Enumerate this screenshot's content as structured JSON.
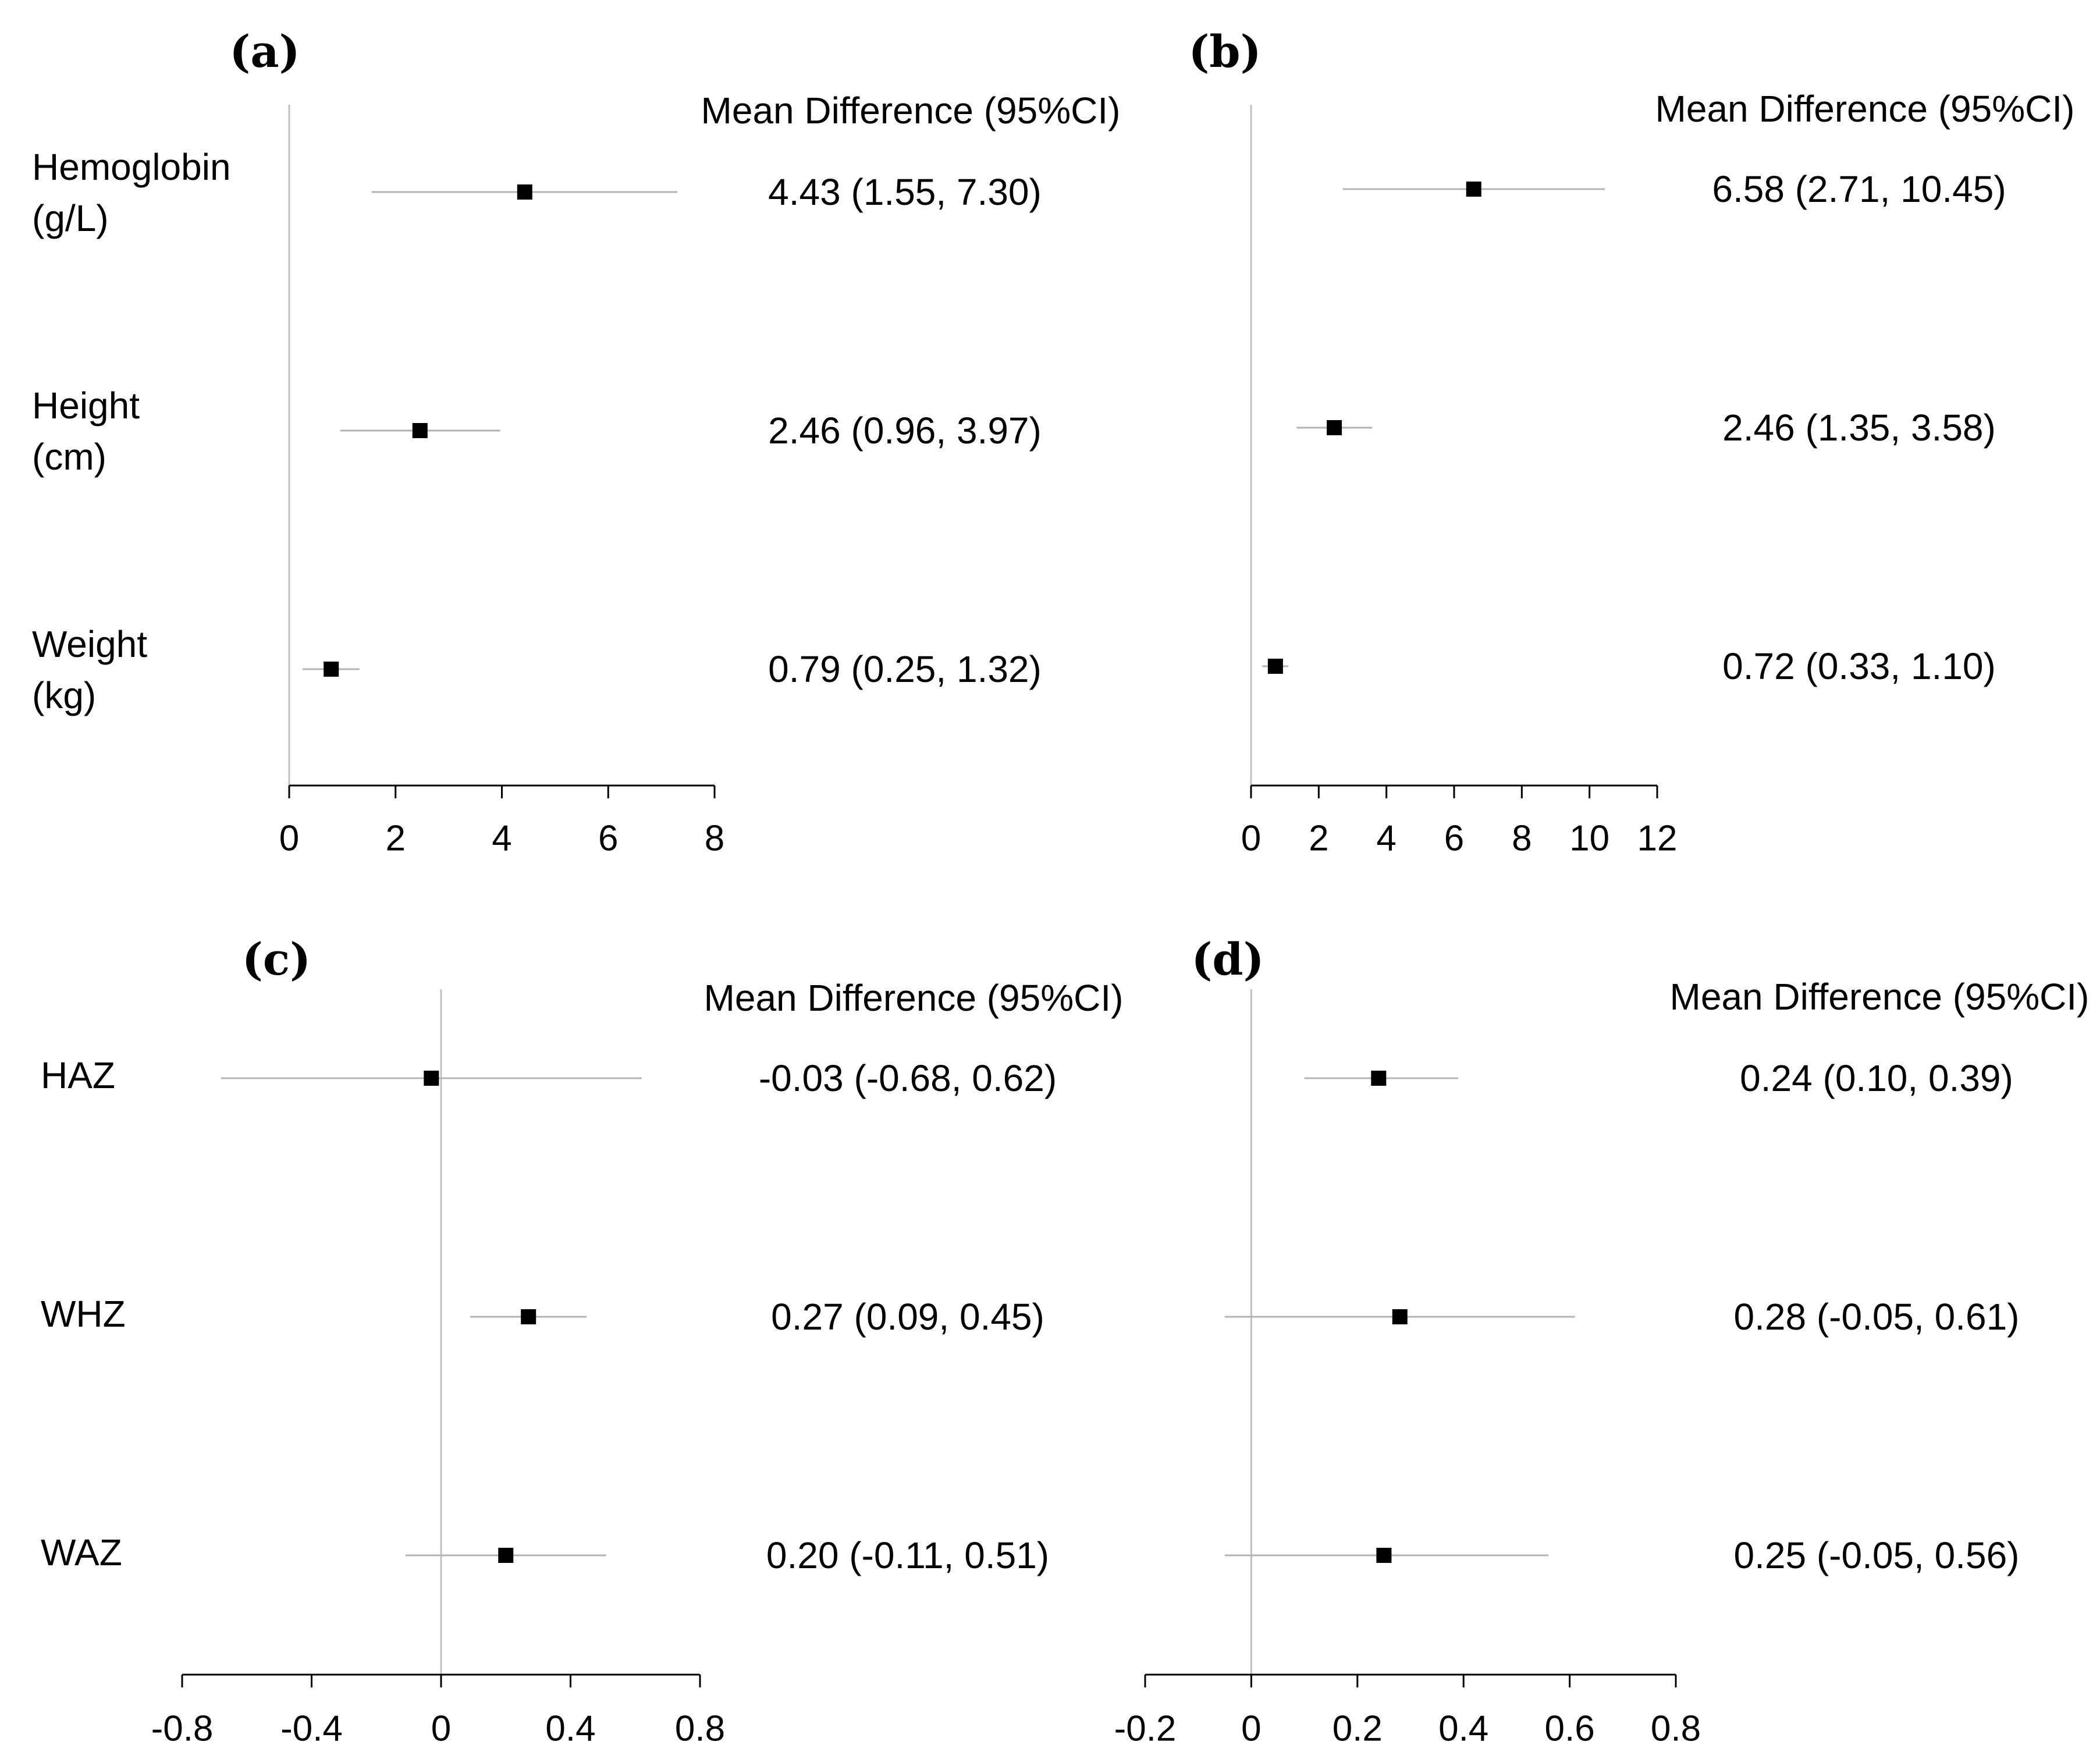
{
  "chart_data": [
    {
      "type": "forest",
      "panel": "(a)",
      "header": "Mean Difference (95%CI)",
      "xlim": [
        0,
        8
      ],
      "ticks": [
        0,
        2,
        4,
        6,
        8
      ],
      "tick_labels": [
        "0",
        "2",
        "4",
        "6",
        "8"
      ],
      "reference_line": 0,
      "rows": [
        {
          "label": [
            "Hemoglobin",
            "(g/L)"
          ],
          "mean": 4.43,
          "lo": 1.55,
          "hi": 7.3,
          "text": "4.43 (1.55, 7.30)"
        },
        {
          "label": [
            "Height",
            "(cm)"
          ],
          "mean": 2.46,
          "lo": 0.96,
          "hi": 3.97,
          "text": "2.46 (0.96, 3.97)"
        },
        {
          "label": [
            "Weight",
            "(kg)"
          ],
          "mean": 0.79,
          "lo": 0.25,
          "hi": 1.32,
          "text": "0.79 (0.25, 1.32)"
        }
      ]
    },
    {
      "type": "forest",
      "panel": "(b)",
      "header": "Mean Difference (95%CI)",
      "xlim": [
        0,
        12
      ],
      "ticks": [
        0,
        2,
        4,
        6,
        8,
        10,
        12
      ],
      "tick_labels": [
        "0",
        "2",
        "4",
        "6",
        "8",
        "10",
        "12"
      ],
      "reference_line": 0,
      "rows": [
        {
          "label": [],
          "mean": 6.58,
          "lo": 2.71,
          "hi": 10.45,
          "text": "6.58 (2.71, 10.45)"
        },
        {
          "label": [],
          "mean": 2.46,
          "lo": 1.35,
          "hi": 3.58,
          "text": "2.46 (1.35, 3.58)"
        },
        {
          "label": [],
          "mean": 0.72,
          "lo": 0.33,
          "hi": 1.1,
          "text": "0.72 (0.33, 1.10)"
        }
      ]
    },
    {
      "type": "forest",
      "panel": "(c)",
      "header": "Mean Difference (95%CI)",
      "xlim": [
        -0.8,
        0.8
      ],
      "ticks": [
        -0.8,
        -0.4,
        0,
        0.4,
        0.8
      ],
      "tick_labels": [
        "-0.8",
        "-0.4",
        "0",
        "0.4",
        "0.8"
      ],
      "reference_line": 0,
      "rows": [
        {
          "label": [
            "HAZ"
          ],
          "mean": -0.03,
          "lo": -0.68,
          "hi": 0.62,
          "text": "-0.03 (-0.68, 0.62)"
        },
        {
          "label": [
            "WHZ"
          ],
          "mean": 0.27,
          "lo": 0.09,
          "hi": 0.45,
          "text": "0.27 (0.09, 0.45)"
        },
        {
          "label": [
            "WAZ"
          ],
          "mean": 0.2,
          "lo": -0.11,
          "hi": 0.51,
          "text": "0.20 (-0.11, 0.51)"
        }
      ]
    },
    {
      "type": "forest",
      "panel": "(d)",
      "header": "Mean Difference (95%CI)",
      "xlim": [
        -0.2,
        0.8
      ],
      "ticks": [
        -0.2,
        0,
        0.2,
        0.4,
        0.6,
        0.8
      ],
      "tick_labels": [
        "-0.2",
        "0",
        "0.2",
        "0.4",
        "0.6",
        "0.8"
      ],
      "reference_line": 0,
      "rows": [
        {
          "label": [],
          "mean": 0.24,
          "lo": 0.1,
          "hi": 0.39,
          "text": "0.24 (0.10, 0.39)"
        },
        {
          "label": [],
          "mean": 0.28,
          "lo": -0.05,
          "hi": 0.61,
          "text": "0.28 (-0.05, 0.61)"
        },
        {
          "label": [],
          "mean": 0.25,
          "lo": -0.05,
          "hi": 0.56,
          "text": "0.25 (-0.05, 0.56)"
        }
      ]
    }
  ],
  "colors": {
    "marker": "#000000",
    "ci_line": "#b3b3b3",
    "axis": "#000000",
    "reference": "#c0c0c0",
    "text": "#000000"
  }
}
